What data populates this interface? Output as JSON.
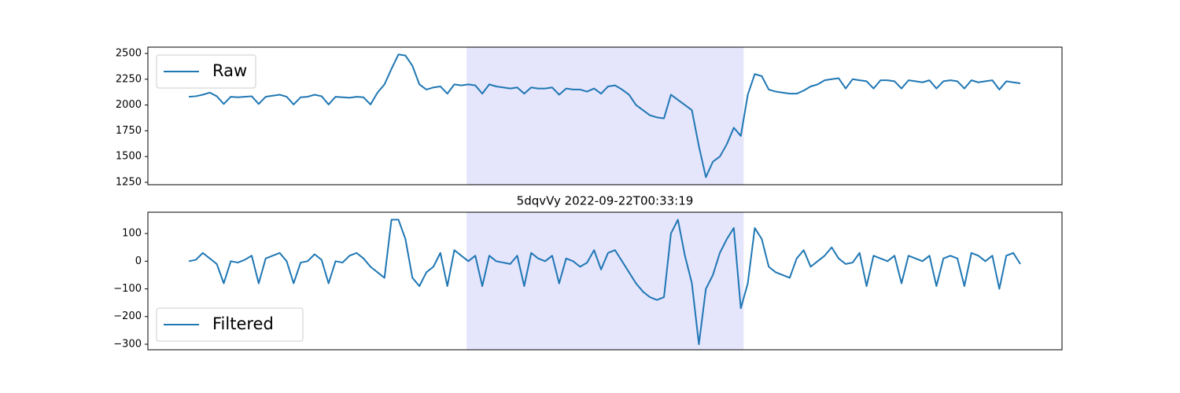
{
  "chart_data": [
    {
      "type": "line",
      "legend": "upper left",
      "xlim": [
        -5.86,
        124.97
      ],
      "ylim": [
        1227,
        2561
      ],
      "yticks": [
        1250,
        1500,
        1750,
        2000,
        2250,
        2500
      ],
      "highlight": {
        "x": [
          39.75,
          79.4
        ],
        "color": "#e5e5fc"
      },
      "series": [
        {
          "name": "Raw",
          "color": "#1f77b4",
          "values": [
            2080,
            2085,
            2100,
            2120,
            2085,
            2010,
            2080,
            2075,
            2080,
            2085,
            2010,
            2080,
            2090,
            2100,
            2080,
            2005,
            2075,
            2080,
            2100,
            2085,
            2005,
            2080,
            2075,
            2070,
            2080,
            2075,
            2005,
            2120,
            2200,
            2350,
            2490,
            2480,
            2380,
            2200,
            2150,
            2170,
            2180,
            2110,
            2200,
            2190,
            2200,
            2190,
            2110,
            2200,
            2180,
            2170,
            2160,
            2170,
            2110,
            2170,
            2160,
            2160,
            2170,
            2100,
            2160,
            2150,
            2150,
            2130,
            2160,
            2110,
            2180,
            2190,
            2150,
            2100,
            2000,
            1950,
            1900,
            1880,
            1870,
            2100,
            2050,
            2000,
            1950,
            1600,
            1300,
            1450,
            1500,
            1620,
            1780,
            1700,
            2100,
            2300,
            2280,
            2150,
            2130,
            2120,
            2110,
            2110,
            2140,
            2180,
            2200,
            2240,
            2250,
            2260,
            2160,
            2250,
            2240,
            2230,
            2160,
            2240,
            2240,
            2230,
            2160,
            2240,
            2230,
            2220,
            2240,
            2160,
            2230,
            2240,
            2230,
            2160,
            2240,
            2220,
            2230,
            2240,
            2150,
            2230,
            2220,
            2210
          ]
        }
      ]
    },
    {
      "type": "line",
      "title": "5dqvVy 2022-09-22T00:33:19",
      "legend": "lower left",
      "xlim": [
        -5.86,
        124.97
      ],
      "ylim": [
        -320,
        177
      ],
      "yticks": [
        {
          "value": -300,
          "label": "−300"
        },
        {
          "value": -200,
          "label": "−200"
        },
        {
          "value": -100,
          "label": "−100"
        },
        0,
        100
      ],
      "highlight": {
        "x": [
          39.75,
          79.4
        ],
        "color": "#e5e5fc"
      },
      "series": [
        {
          "name": "Filtered",
          "color": "#1f77b4",
          "values": [
            0,
            5,
            30,
            10,
            -10,
            -80,
            0,
            -5,
            5,
            20,
            -80,
            10,
            20,
            30,
            0,
            -80,
            -5,
            0,
            25,
            5,
            -80,
            0,
            -5,
            20,
            30,
            10,
            -20,
            -40,
            -60,
            150,
            150,
            80,
            -60,
            -90,
            -40,
            -20,
            30,
            -90,
            40,
            20,
            0,
            20,
            -90,
            20,
            0,
            -5,
            -10,
            20,
            -90,
            30,
            10,
            0,
            20,
            -80,
            10,
            0,
            -20,
            -5,
            40,
            -30,
            30,
            40,
            0,
            -40,
            -80,
            -110,
            -130,
            -140,
            -130,
            100,
            150,
            20,
            -80,
            -300,
            -100,
            -50,
            30,
            80,
            120,
            -170,
            -80,
            120,
            80,
            -20,
            -40,
            -50,
            -60,
            10,
            40,
            -20,
            0,
            20,
            50,
            10,
            -10,
            -5,
            30,
            -90,
            20,
            10,
            0,
            20,
            -80,
            20,
            10,
            0,
            20,
            -90,
            10,
            20,
            10,
            -90,
            30,
            20,
            0,
            20,
            -100,
            20,
            30,
            -10
          ]
        }
      ]
    }
  ]
}
